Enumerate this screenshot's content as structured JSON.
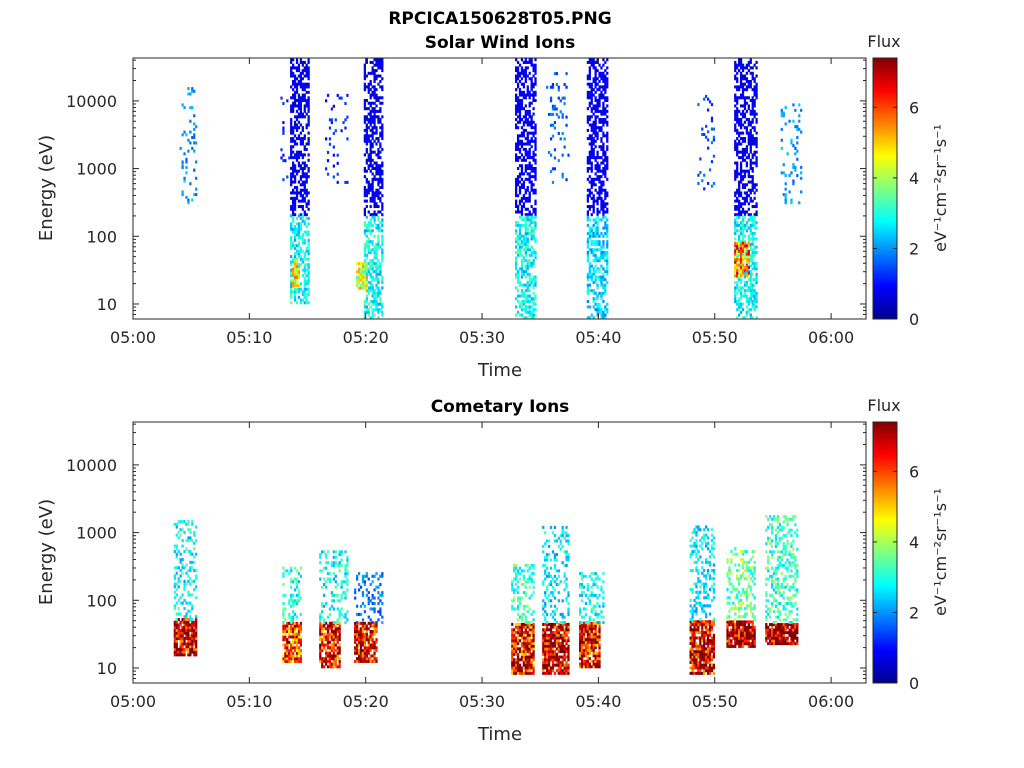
{
  "figure": {
    "title": "RPCICA150628T05.PNG"
  },
  "colors": {
    "jet": [
      "#00008f",
      "#0000ff",
      "#0080ff",
      "#00ffff",
      "#80ff80",
      "#ffff00",
      "#ff8000",
      "#ff0000",
      "#800000"
    ],
    "axis": "#262626"
  },
  "chart_data": [
    {
      "type": "heatmap",
      "title": "Solar Wind Ions",
      "xlabel": "Time",
      "ylabel": "Energy (eV)",
      "x_scale": "time",
      "y_scale": "log",
      "xlim": [
        "05:00",
        "06:03"
      ],
      "ylim": [
        6,
        43000
      ],
      "x_ticks": [
        "05:00",
        "05:10",
        "05:20",
        "05:30",
        "05:40",
        "05:50",
        "06:00"
      ],
      "y_ticks": [
        "10",
        "100",
        "1000",
        "10000"
      ],
      "colorbar": {
        "label": "Flux",
        "unit": "eV⁻¹cm⁻²sr⁻¹s⁻¹",
        "range": [
          0,
          7.4
        ],
        "ticks": [
          "0",
          "2",
          "4",
          "6"
        ]
      },
      "bursts": [
        {
          "start": "05:04:00",
          "end": "05:05:30",
          "e_min": 300,
          "e_max": 15000,
          "flux": 2.0,
          "density": 0.15
        },
        {
          "start": "05:12:40",
          "end": "05:13:30",
          "e_min": 600,
          "e_max": 12000,
          "flux": 1.2,
          "density": 0.1
        },
        {
          "start": "05:13:30",
          "end": "05:15:10",
          "e_min": 200,
          "e_max": 40000,
          "flux": 0.8,
          "density": 0.55
        },
        {
          "start": "05:13:30",
          "end": "05:15:10",
          "e_min": 10,
          "e_max": 200,
          "flux": 2.8,
          "density": 0.55
        },
        {
          "start": "05:13:40",
          "end": "05:14:20",
          "e_min": 18,
          "e_max": 45,
          "flux": 4.6,
          "density": 0.7
        },
        {
          "start": "05:16:30",
          "end": "05:18:30",
          "e_min": 600,
          "e_max": 12000,
          "flux": 1.2,
          "density": 0.1
        },
        {
          "start": "05:19:50",
          "end": "05:21:30",
          "e_min": 200,
          "e_max": 40000,
          "flux": 0.8,
          "density": 0.55
        },
        {
          "start": "05:19:50",
          "end": "05:21:30",
          "e_min": 6,
          "e_max": 200,
          "flux": 2.8,
          "density": 0.55
        },
        {
          "start": "05:19:10",
          "end": "05:20:10",
          "e_min": 15,
          "e_max": 40,
          "flux": 4.4,
          "density": 0.7
        },
        {
          "start": "05:32:50",
          "end": "05:34:40",
          "e_min": 200,
          "e_max": 40000,
          "flux": 0.8,
          "density": 0.55
        },
        {
          "start": "05:32:50",
          "end": "05:34:40",
          "e_min": 6,
          "e_max": 200,
          "flux": 2.8,
          "density": 0.55
        },
        {
          "start": "05:35:30",
          "end": "05:37:30",
          "e_min": 600,
          "e_max": 25000,
          "flux": 1.6,
          "density": 0.12
        },
        {
          "start": "05:39:00",
          "end": "05:40:50",
          "e_min": 200,
          "e_max": 40000,
          "flux": 0.8,
          "density": 0.55
        },
        {
          "start": "05:39:00",
          "end": "05:40:50",
          "e_min": 6,
          "e_max": 200,
          "flux": 2.5,
          "density": 0.55
        },
        {
          "start": "05:48:30",
          "end": "05:50:00",
          "e_min": 400,
          "e_max": 12000,
          "flux": 1.5,
          "density": 0.12
        },
        {
          "start": "05:51:40",
          "end": "05:53:40",
          "e_min": 200,
          "e_max": 40000,
          "flux": 0.8,
          "density": 0.55
        },
        {
          "start": "05:51:40",
          "end": "05:53:40",
          "e_min": 6,
          "e_max": 200,
          "flux": 2.8,
          "density": 0.55
        },
        {
          "start": "05:51:40",
          "end": "05:53:00",
          "e_min": 25,
          "e_max": 80,
          "flux": 5.5,
          "density": 0.75
        },
        {
          "start": "05:55:40",
          "end": "05:57:30",
          "e_min": 300,
          "e_max": 9000,
          "flux": 2.0,
          "density": 0.15
        }
      ]
    },
    {
      "type": "heatmap",
      "title": "Cometary Ions",
      "xlabel": "Time",
      "ylabel": "Energy (eV)",
      "x_scale": "time",
      "y_scale": "log",
      "xlim": [
        "05:00",
        "06:03"
      ],
      "ylim": [
        6,
        43000
      ],
      "x_ticks": [
        "05:00",
        "05:10",
        "05:20",
        "05:30",
        "05:40",
        "05:50",
        "06:00"
      ],
      "y_ticks": [
        "10",
        "100",
        "1000",
        "10000"
      ],
      "colorbar": {
        "label": "Flux",
        "unit": "eV⁻¹cm⁻²sr⁻¹s⁻¹",
        "range": [
          0,
          7.4
        ],
        "ticks": [
          "0",
          "2",
          "4",
          "6"
        ]
      },
      "bursts": [
        {
          "start": "05:03:30",
          "end": "05:05:30",
          "e_min": 15,
          "e_max": 50,
          "flux": 7.0,
          "density": 0.9
        },
        {
          "start": "05:03:30",
          "end": "05:05:30",
          "e_min": 50,
          "e_max": 1400,
          "flux": 2.8,
          "density": 0.3
        },
        {
          "start": "05:12:50",
          "end": "05:14:30",
          "e_min": 12,
          "e_max": 45,
          "flux": 6.0,
          "density": 0.8
        },
        {
          "start": "05:12:50",
          "end": "05:14:30",
          "e_min": 45,
          "e_max": 300,
          "flux": 3.0,
          "density": 0.3
        },
        {
          "start": "05:16:00",
          "end": "05:17:50",
          "e_min": 10,
          "e_max": 45,
          "flux": 6.5,
          "density": 0.8
        },
        {
          "start": "05:16:00",
          "end": "05:18:30",
          "e_min": 45,
          "e_max": 500,
          "flux": 2.8,
          "density": 0.3
        },
        {
          "start": "05:19:00",
          "end": "05:21:00",
          "e_min": 12,
          "e_max": 45,
          "flux": 6.8,
          "density": 0.85
        },
        {
          "start": "05:19:00",
          "end": "05:21:30",
          "e_min": 45,
          "e_max": 250,
          "flux": 1.8,
          "density": 0.25
        },
        {
          "start": "05:32:30",
          "end": "05:34:30",
          "e_min": 8,
          "e_max": 45,
          "flux": 6.5,
          "density": 0.85
        },
        {
          "start": "05:32:30",
          "end": "05:34:30",
          "e_min": 45,
          "e_max": 320,
          "flux": 3.2,
          "density": 0.35
        },
        {
          "start": "05:35:10",
          "end": "05:37:30",
          "e_min": 8,
          "e_max": 45,
          "flux": 7.0,
          "density": 0.85
        },
        {
          "start": "05:35:10",
          "end": "05:37:30",
          "e_min": 45,
          "e_max": 1200,
          "flux": 2.6,
          "density": 0.3
        },
        {
          "start": "05:38:20",
          "end": "05:40:10",
          "e_min": 10,
          "e_max": 45,
          "flux": 6.5,
          "density": 0.85
        },
        {
          "start": "05:38:20",
          "end": "05:40:30",
          "e_min": 45,
          "e_max": 250,
          "flux": 2.8,
          "density": 0.3
        },
        {
          "start": "05:47:50",
          "end": "05:50:00",
          "e_min": 8,
          "e_max": 50,
          "flux": 6.8,
          "density": 0.85
        },
        {
          "start": "05:47:50",
          "end": "05:50:00",
          "e_min": 50,
          "e_max": 1200,
          "flux": 2.6,
          "density": 0.3
        },
        {
          "start": "05:51:00",
          "end": "05:53:30",
          "e_min": 20,
          "e_max": 50,
          "flux": 7.2,
          "density": 0.9
        },
        {
          "start": "05:51:00",
          "end": "05:53:30",
          "e_min": 50,
          "e_max": 600,
          "flux": 3.5,
          "density": 0.4
        },
        {
          "start": "05:54:20",
          "end": "05:57:10",
          "e_min": 22,
          "e_max": 45,
          "flux": 7.2,
          "density": 0.9
        },
        {
          "start": "05:54:20",
          "end": "05:57:10",
          "e_min": 45,
          "e_max": 1700,
          "flux": 3.2,
          "density": 0.35
        }
      ]
    }
  ]
}
